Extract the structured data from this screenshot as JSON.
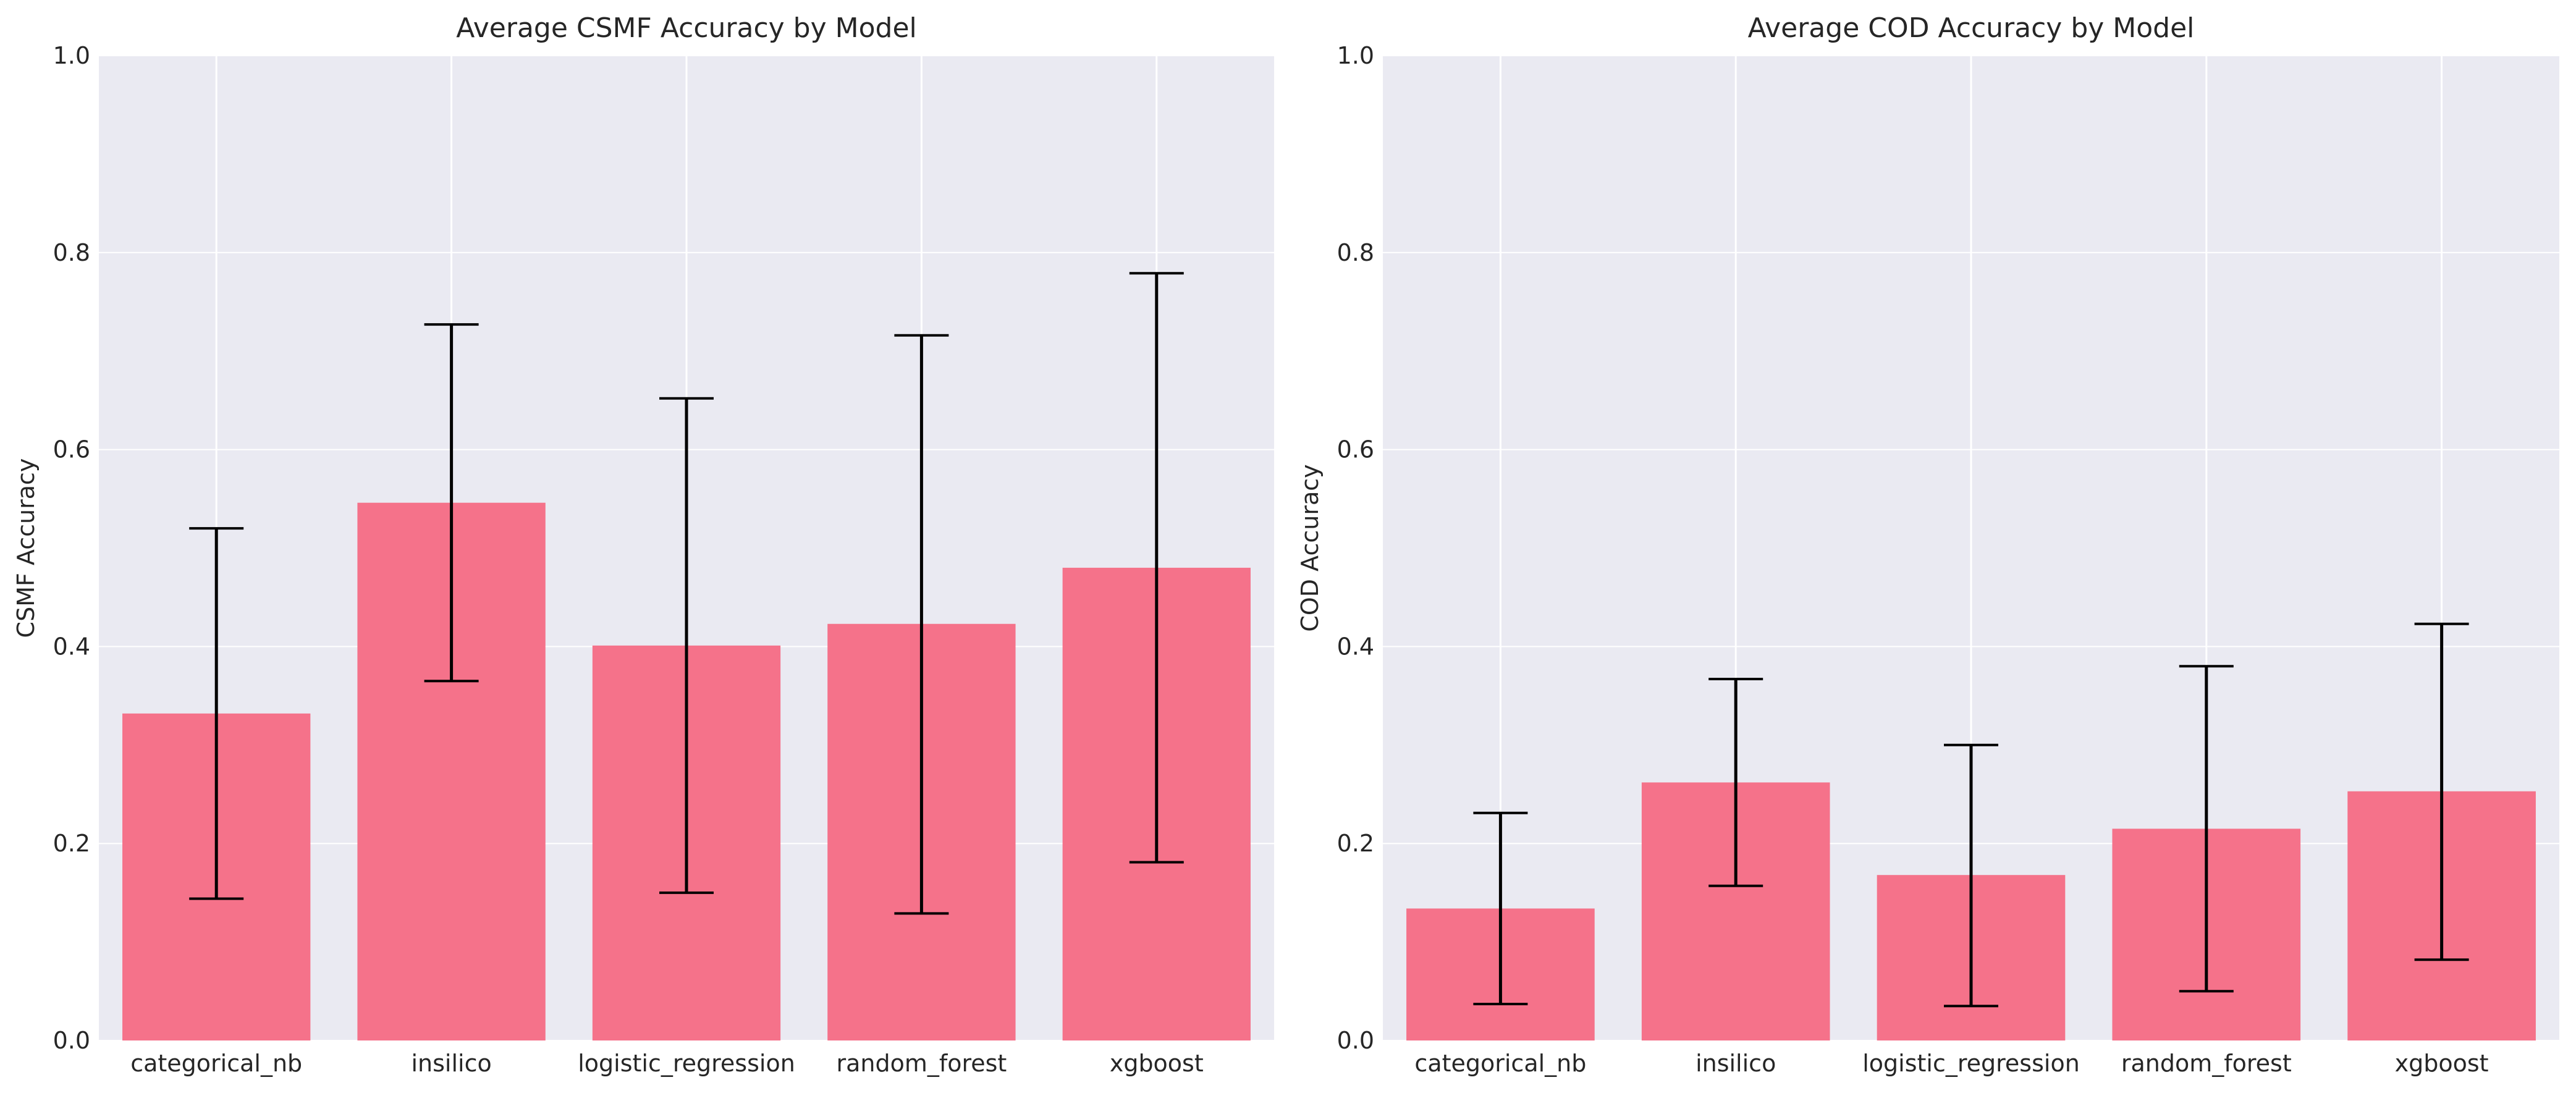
{
  "chart_data": [
    {
      "type": "bar",
      "title": "Average CSMF Accuracy by Model",
      "xlabel": "",
      "ylabel": "CSMF Accuracy",
      "ylim": [
        0,
        1.0
      ],
      "yticks": [
        "0.0",
        "0.2",
        "0.4",
        "0.6",
        "0.8",
        "1.0"
      ],
      "categories": [
        "categorical_nb",
        "insilico",
        "logistic_regression",
        "random_forest",
        "xgboost"
      ],
      "values": [
        0.332,
        0.546,
        0.401,
        0.423,
        0.48
      ],
      "error_low": [
        0.144,
        0.365,
        0.15,
        0.129,
        0.181
      ],
      "error_high": [
        0.52,
        0.727,
        0.652,
        0.716,
        0.779
      ],
      "grid": true,
      "bar_color": "#f5728a",
      "background": "#eaeaf2"
    },
    {
      "type": "bar",
      "title": "Average COD Accuracy by Model",
      "xlabel": "",
      "ylabel": "COD Accuracy",
      "ylim": [
        0,
        1.0
      ],
      "yticks": [
        "0.0",
        "0.2",
        "0.4",
        "0.6",
        "0.8",
        "1.0"
      ],
      "categories": [
        "categorical_nb",
        "insilico",
        "logistic_regression",
        "random_forest",
        "xgboost"
      ],
      "values": [
        0.134,
        0.262,
        0.168,
        0.215,
        0.253
      ],
      "error_low": [
        0.037,
        0.157,
        0.035,
        0.05,
        0.082
      ],
      "error_high": [
        0.231,
        0.367,
        0.3,
        0.38,
        0.423
      ],
      "grid": true,
      "bar_color": "#f5728a",
      "background": "#eaeaf2"
    }
  ]
}
